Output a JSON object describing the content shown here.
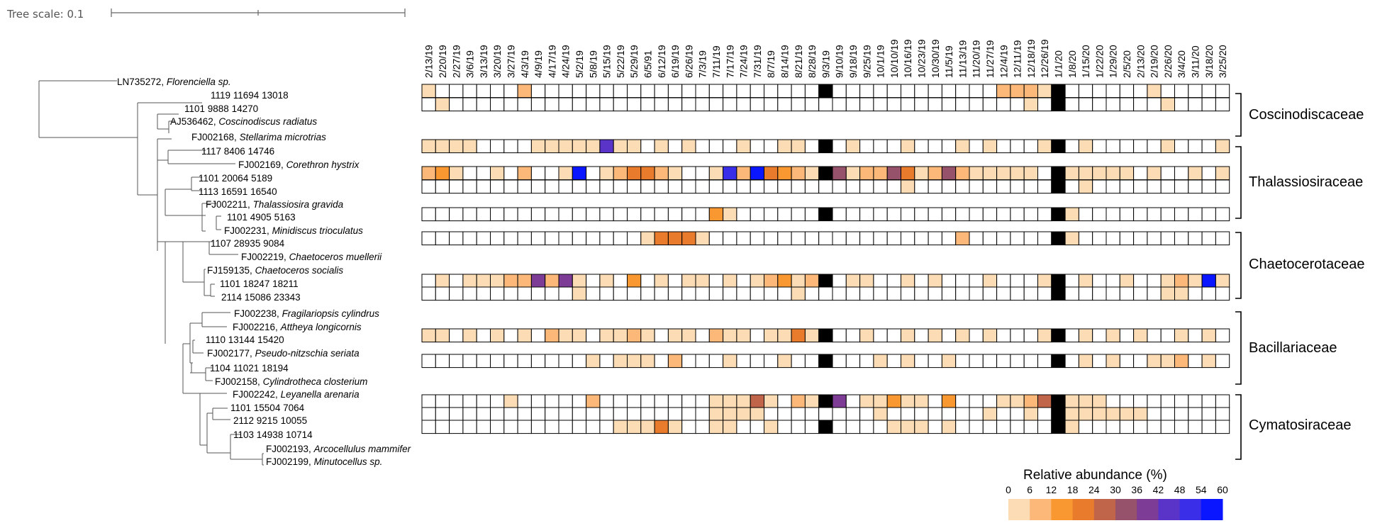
{
  "tree_scale_label": "Tree scale: 0.1",
  "dates": [
    "2/13/19",
    "2/20/19",
    "2/27/19",
    "3/6/19",
    "3/13/19",
    "3/20/19",
    "3/27/19",
    "4/3/19",
    "4/9/19",
    "4/17/19",
    "4/24/19",
    "5/2/19",
    "5/8/19",
    "5/15/19",
    "5/22/19",
    "5/29/19",
    "6/5/91",
    "6/12/19",
    "6/19/19",
    "6/26/19",
    "7/3/19",
    "7/11/19",
    "7/17/19",
    "7/24/19",
    "7/31/19",
    "8/7/19",
    "8/14/19",
    "8/21/19",
    "8/28/19",
    "9/3/19",
    "9/10/19",
    "9/18/19",
    "9/25/19",
    "10/1/19",
    "10/10/19",
    "10/16/19",
    "10/23/19",
    "10/30/19",
    "11/5/19",
    "11/13/19",
    "11/20/19",
    "11/27/19",
    "12/4/19",
    "12/11/19",
    "12/18/19",
    "12/26/19",
    "1/1/20",
    "1/8/20",
    "1/15/20",
    "1/22/20",
    "1/29/20",
    "2/5/20",
    "2/13/20",
    "2/19/20",
    "2/26/20",
    "3/4/20",
    "3/11/20",
    "3/18/20",
    "3/25/20"
  ],
  "leaves": [
    {
      "ref": "LN735272",
      "sep": ", ",
      "species": "Florenciella sp.",
      "color": "#000000"
    },
    {
      "ref": "1119 11694 13018",
      "sep": "",
      "species": "",
      "color": "#0000cc"
    },
    {
      "ref": "1101 9888 14270",
      "sep": "",
      "species": "",
      "color": "#ff0000"
    },
    {
      "ref": "AJ536462",
      "sep": ", ",
      "species": "Coscinodiscus radiatus",
      "color": "#000000"
    },
    {
      "ref": "FJ002168",
      "sep": ", ",
      "species": "Stellarima microtrias",
      "color": "#000000"
    },
    {
      "ref": "1117 8406 14746",
      "sep": "",
      "species": "",
      "color": "#0000cc"
    },
    {
      "ref": "FJ002169",
      "sep": ", ",
      "species": "Corethron hystrix",
      "color": "#000000"
    },
    {
      "ref": "1101 20064 5189",
      "sep": "",
      "species": "",
      "color": "#0000cc"
    },
    {
      "ref": "1113 16591 16540",
      "sep": "",
      "species": "",
      "color": "#ff0000"
    },
    {
      "ref": "FJ002211",
      "sep": ", ",
      "species": "Thalassiosira gravida",
      "color": "#000000"
    },
    {
      "ref": "1101 4905 5163",
      "sep": "",
      "species": "",
      "color": "#0000cc"
    },
    {
      "ref": "FJ002231",
      "sep": ", ",
      "species": "Minidiscus trioculatus",
      "color": "#000000"
    },
    {
      "ref": "1107 28935 9084",
      "sep": "",
      "species": "",
      "color": "#0000cc"
    },
    {
      "ref": "FJ002219",
      "sep": ", ",
      "species": "Chaetoceros muellerii",
      "color": "#000000"
    },
    {
      "ref": "FJ159135",
      "sep": ", ",
      "species": "Chaetoceros socialis",
      "color": "#000000"
    },
    {
      "ref": "1101 18247 18211",
      "sep": "",
      "species": "",
      "color": "#0000cc"
    },
    {
      "ref": "2114 15086 23343",
      "sep": "",
      "species": "",
      "color": "#ff0000"
    },
    {
      "ref": "FJ002238",
      "sep": ", ",
      "species": "Fragilariopsis cylindrus",
      "color": "#000000"
    },
    {
      "ref": "FJ002216",
      "sep": ", ",
      "species": "Attheya longicornis",
      "color": "#000000"
    },
    {
      "ref": "1110 13144 15420",
      "sep": "",
      "species": "",
      "color": "#0000cc"
    },
    {
      "ref": "FJ002177",
      "sep": ", ",
      "species": "Pseudo-nitzschia seriata",
      "color": "#000000"
    },
    {
      "ref": "1104 11021 18194",
      "sep": "",
      "species": "",
      "color": "#0000cc"
    },
    {
      "ref": "FJ002158",
      "sep": ", ",
      "species": "Cylindrotheca closterium",
      "color": "#000000"
    },
    {
      "ref": "FJ002242",
      "sep": ", ",
      "species": "Leyanella arenaria",
      "color": "#000000"
    },
    {
      "ref": "1101 15504 7064",
      "sep": "",
      "species": "",
      "color": "#0000cc"
    },
    {
      "ref": "2112 9215 10055",
      "sep": "",
      "species": "",
      "color": "#ff0000"
    },
    {
      "ref": "1103 14938 10714",
      "sep": "",
      "species": "",
      "color": "#0000cc"
    },
    {
      "ref": "FJ002193",
      "sep": ", ",
      "species": "Arcocellulus mammifer",
      "color": "#000000"
    },
    {
      "ref": "FJ002199",
      "sep": ", ",
      "species": "Minutocellus sp.",
      "color": "#000000"
    }
  ],
  "heatmap_rows": [
    {
      "leaf": "1119 11694 13018",
      "levels": {
        "0": 1,
        "7": 2,
        "42": 2,
        "43": 2,
        "44": 2,
        "45": 1,
        "53": 1
      }
    },
    {
      "leaf": "1101 9888 14270",
      "levels": {
        "1": 1,
        "44": 1,
        "54": 1
      }
    },
    {
      "leaf": "1117 8406 14746",
      "levels": {
        "0": 1,
        "1": 1,
        "2": 1,
        "3": 1,
        "8": 1,
        "9": 1,
        "10": 1,
        "11": 1,
        "12": 1,
        "13": 8,
        "14": 1,
        "15": 1,
        "17": 1,
        "19": 1,
        "23": 1,
        "26": 1,
        "27": 1,
        "31": 1,
        "35": 1,
        "39": 1,
        "41": 1,
        "45": 1,
        "48": 1,
        "54": 1,
        "58": 1
      }
    },
    {
      "leaf": "1101 20064 5189",
      "levels": {
        "0": 2,
        "1": 3,
        "2": 1,
        "5": 1,
        "7": 2,
        "10": 1,
        "11": 10,
        "13": 1,
        "14": 2,
        "15": 4,
        "16": 4,
        "17": 2,
        "18": 1,
        "21": 1,
        "22": 9,
        "23": 2,
        "24": 10,
        "25": 4,
        "26": 3,
        "27": 2,
        "28": 1,
        "30": 6,
        "31": 1,
        "32": 2,
        "33": 2,
        "34": 6,
        "35": 4,
        "36": 1,
        "37": 2,
        "38": 6,
        "39": 2,
        "40": 1,
        "41": 1,
        "42": 1,
        "43": 1,
        "44": 1,
        "46": 1,
        "47": 1,
        "48": 1,
        "49": 1,
        "50": 1,
        "51": 1,
        "53": 1,
        "56": 1,
        "58": 1
      }
    },
    {
      "leaf": "1113 16591 16540",
      "levels": {
        "35": 1,
        "48": 1
      }
    },
    {
      "leaf": "1101 4905 5163",
      "levels": {
        "21": 3,
        "22": 1,
        "47": 1
      }
    },
    {
      "leaf": "1107 28935 9084",
      "levels": {
        "16": 1,
        "17": 4,
        "18": 4,
        "19": 4,
        "20": 1,
        "39": 2,
        "47": 1
      }
    },
    {
      "leaf": "1101 18247 18211",
      "levels": {
        "1": 1,
        "3": 1,
        "4": 1,
        "5": 1,
        "6": 2,
        "7": 2,
        "8": 7,
        "9": 2,
        "10": 7,
        "11": 1,
        "13": 1,
        "15": 3,
        "17": 1,
        "19": 1,
        "20": 1,
        "22": 1,
        "24": 1,
        "25": 2,
        "26": 3,
        "27": 1,
        "28": 2,
        "31": 1,
        "32": 1,
        "35": 1,
        "37": 1,
        "41": 1,
        "45": 1,
        "46": 1,
        "48": 1,
        "51": 1,
        "54": 1,
        "55": 2,
        "56": 1,
        "57": 10,
        "58": 1
      }
    },
    {
      "leaf": "2114 15086 23343",
      "levels": {
        "11": 1,
        "27": 1,
        "54": 1,
        "55": 1
      }
    },
    {
      "leaf": "1110 13144 15420",
      "levels": {
        "0": 1,
        "1": 1,
        "3": 1,
        "5": 1,
        "7": 1,
        "9": 2,
        "10": 1,
        "11": 1,
        "13": 1,
        "14": 1,
        "15": 2,
        "16": 1,
        "18": 1,
        "19": 1,
        "21": 2,
        "22": 1,
        "23": 1,
        "25": 1,
        "26": 1,
        "27": 4,
        "28": 1,
        "32": 1,
        "35": 1,
        "37": 1,
        "39": 1,
        "41": 1,
        "45": 1,
        "48": 1,
        "50": 1,
        "52": 1,
        "55": 1,
        "57": 1
      }
    },
    {
      "leaf": "1104 11021 18194",
      "levels": {
        "12": 1,
        "14": 1,
        "15": 1,
        "16": 1,
        "18": 2,
        "22": 1,
        "26": 1,
        "33": 1,
        "35": 1,
        "38": 1,
        "48": 1,
        "50": 1,
        "53": 1,
        "54": 1,
        "55": 2,
        "57": 1
      }
    },
    {
      "leaf": "1101 15504 7064",
      "levels": {
        "6": 1,
        "12": 2,
        "21": 1,
        "22": 1,
        "23": 1,
        "24": 5,
        "25": 1,
        "27": 2,
        "28": 1,
        "30": 7,
        "32": 1,
        "33": 1,
        "34": 3,
        "35": 1,
        "36": 1,
        "38": 3,
        "42": 1,
        "43": 1,
        "44": 2,
        "45": 5,
        "47": 1,
        "48": 1,
        "49": 1
      }
    },
    {
      "leaf": "2112 9215 10055",
      "levels": {
        "21": 1,
        "22": 1,
        "23": 1,
        "24": 1,
        "33": 1,
        "41": 1,
        "44": 1,
        "47": 1,
        "48": 1,
        "49": 1,
        "50": 1,
        "51": 1,
        "52": 1
      }
    },
    {
      "leaf": "1103 14938 10714",
      "levels": {
        "14": 1,
        "15": 1,
        "16": 1,
        "17": 4,
        "18": 1,
        "21": 1,
        "22": 1,
        "25": 1,
        "34": 1,
        "35": 1,
        "36": 1,
        "38": 1,
        "47": 1
      }
    }
  ],
  "black_columns": [
    {
      "date": "9/3/19",
      "rows": [
        0,
        2,
        3,
        5,
        7,
        9,
        10,
        11,
        13
      ]
    },
    {
      "date": "1/1/20",
      "rows": [
        0,
        1,
        2,
        3,
        4,
        5,
        6,
        7,
        8,
        9,
        10,
        11,
        12,
        13
      ]
    }
  ],
  "families": [
    "Coscinodiscaceae",
    "Thalassiosiraceae",
    "Chaetocerotaceae",
    "Bacillariaceae",
    "Cymatosiraceae"
  ],
  "legend": {
    "title": "Relative abundance (%)",
    "ticks": [
      "0",
      "6",
      "12",
      "18",
      "24",
      "30",
      "36",
      "42",
      "48",
      "54",
      "60"
    ],
    "colors": [
      "#fcdcb4",
      "#fbb878",
      "#f99731",
      "#e97c2c",
      "#c0654a",
      "#96516b",
      "#7d3c95",
      "#5a34c8",
      "#3a2ee8",
      "#0a16ff"
    ]
  },
  "cell_colors": [
    "#ffffff",
    "#fcdcb4",
    "#fbb878",
    "#f99731",
    "#e97c2c",
    "#c0654a",
    "#96516b",
    "#7d3c95",
    "#5a34c8",
    "#3a2ee8",
    "#0a16ff"
  ]
}
